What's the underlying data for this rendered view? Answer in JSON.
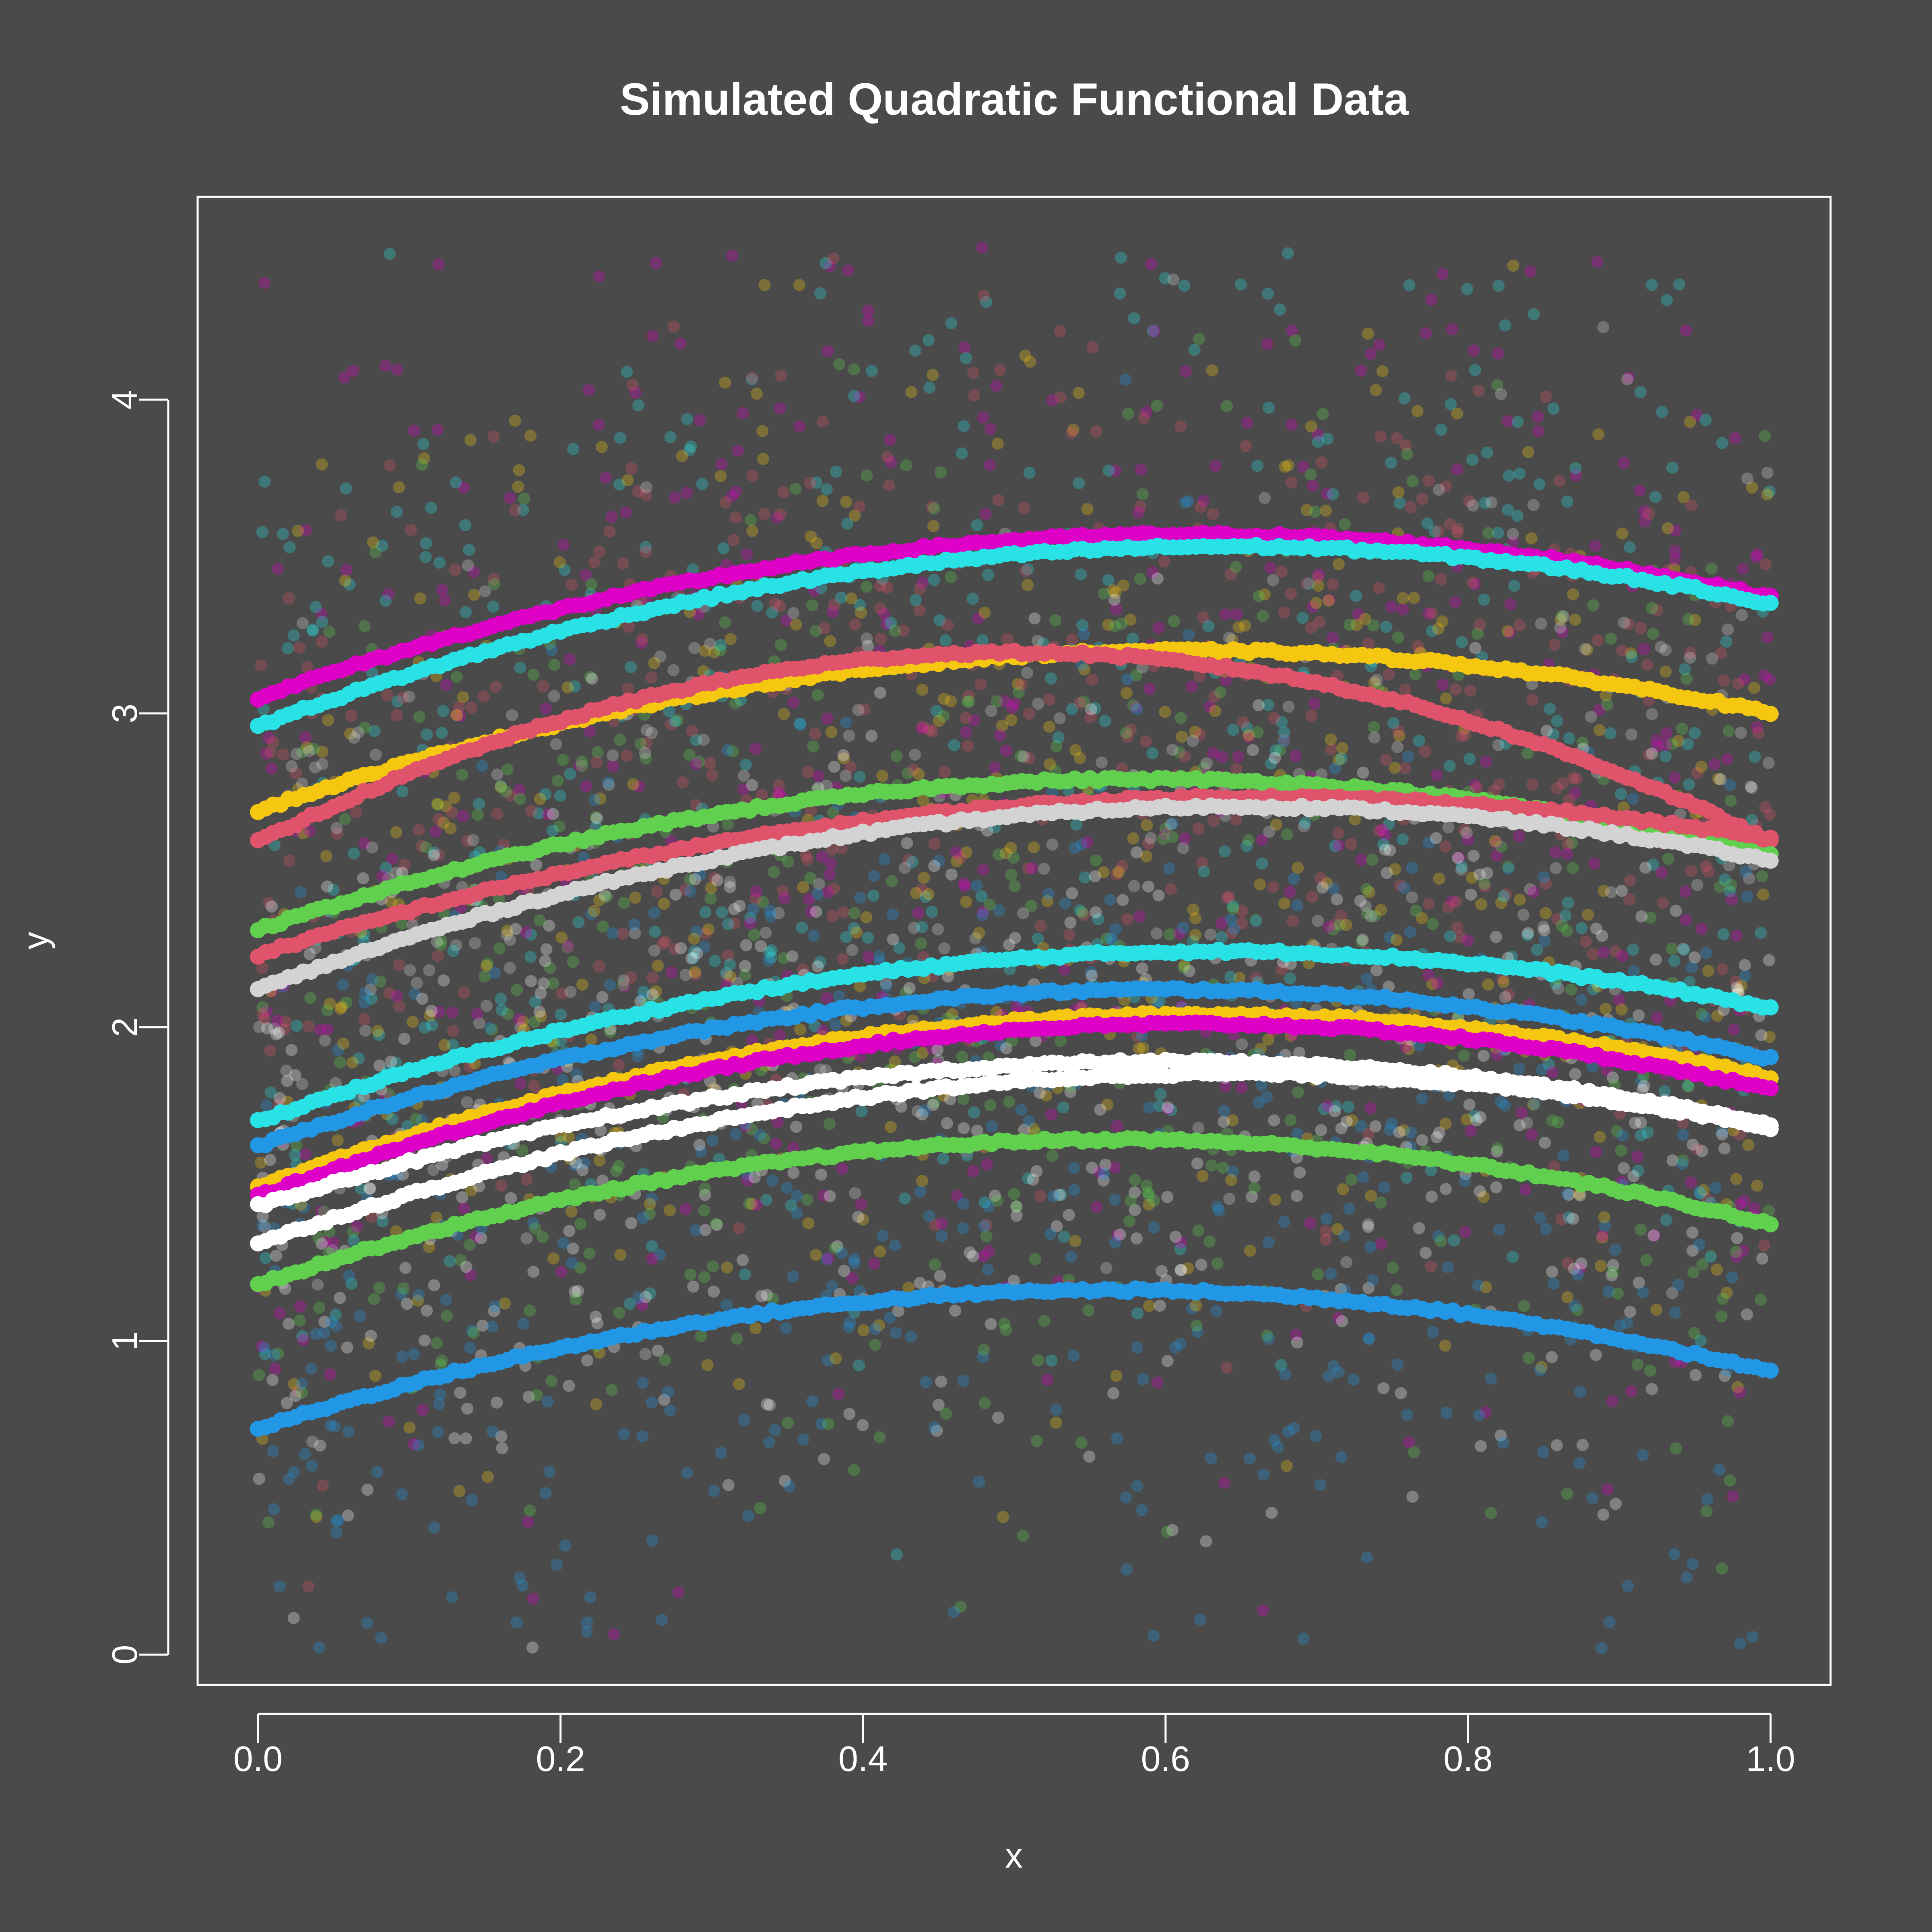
{
  "chart_data": {
    "type": "scatter",
    "title": "Simulated Quadratic Functional Data",
    "xlabel": "x",
    "ylabel": "y",
    "xlim": [
      0,
      1
    ],
    "ylim": [
      0,
      4.5
    ],
    "xticks": [
      "0.0",
      "0.2",
      "0.4",
      "0.6",
      "0.8",
      "1.0"
    ],
    "yticks": [
      "0",
      "1",
      "2",
      "3",
      "4"
    ],
    "grid": false,
    "background": "#4a4a4a",
    "foreground": "#ffffff",
    "noisy_point_opacity": 0.3,
    "series": [
      {
        "color": "#df00c8",
        "y_at_0": 3.05,
        "y_at_0_6": 3.57,
        "y_at_1": 3.37
      },
      {
        "color": "#28e2e5",
        "y_at_0": 2.96,
        "y_at_0_6": 3.53,
        "y_at_1": 3.35
      },
      {
        "color": "#f5c710",
        "y_at_0": 2.69,
        "y_at_0_6": 3.2,
        "y_at_1": 3.0
      },
      {
        "color": "#df536b",
        "y_at_0": 2.59,
        "y_at_0_6": 3.17,
        "y_at_1": 2.59
      },
      {
        "color": "#61d04f",
        "y_at_0": 2.31,
        "y_at_0_6": 2.79,
        "y_at_1": 2.55
      },
      {
        "color": "#df536b",
        "y_at_0": 2.23,
        "y_at_0_6": 2.73,
        "y_at_1": 2.6
      },
      {
        "color": "#d3d3d3",
        "y_at_0": 2.12,
        "y_at_0_6": 2.7,
        "y_at_1": 2.53
      },
      {
        "color": "#28e2e5",
        "y_at_0": 1.7,
        "y_at_0_6": 2.24,
        "y_at_1": 2.06
      },
      {
        "color": "#2297e6",
        "y_at_0": 1.62,
        "y_at_0_6": 2.12,
        "y_at_1": 1.9
      },
      {
        "color": "#f5c710",
        "y_at_0": 1.49,
        "y_at_0_6": 2.04,
        "y_at_1": 1.84
      },
      {
        "color": "#df00c8",
        "y_at_0": 1.46,
        "y_at_0_6": 2.01,
        "y_at_1": 1.8
      },
      {
        "color": "#ffffff",
        "y_at_0": 1.43,
        "y_at_0_6": 1.89,
        "y_at_1": 1.69
      },
      {
        "color": "#ffffff",
        "y_at_0": 1.31,
        "y_at_0_6": 1.85,
        "y_at_1": 1.68
      },
      {
        "color": "#61d04f",
        "y_at_0": 1.18,
        "y_at_0_6": 1.64,
        "y_at_1": 1.37
      },
      {
        "color": "#2297e6",
        "y_at_0": 0.72,
        "y_at_0_6": 1.16,
        "y_at_1": 0.9
      }
    ]
  }
}
